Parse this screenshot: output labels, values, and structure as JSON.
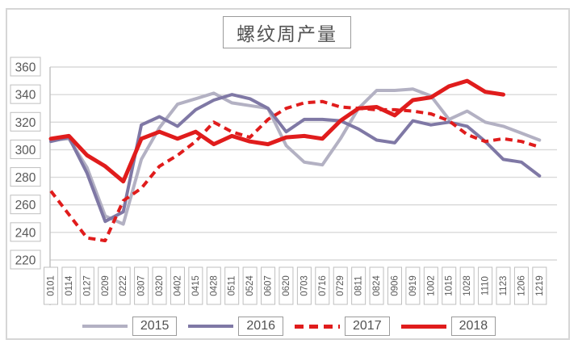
{
  "title": "螺纹周产量",
  "colors": {
    "grid": "#d9d9d9",
    "axis_box_border": "#bfbfbf",
    "axis_text": "#595959",
    "series_2015": "#b3b1c3",
    "series_2016": "#7f78a5",
    "series_2017": "#e01c1c",
    "series_2018": "#e01c1c"
  },
  "chart_data": {
    "type": "line",
    "title": "螺纹周产量",
    "xlabel": "",
    "ylabel": "",
    "ylim": [
      220,
      360
    ],
    "yticks": [
      360,
      340,
      320,
      300,
      280,
      260,
      240,
      220
    ],
    "grid": true,
    "legend_position": "bottom",
    "categories": [
      "0101",
      "0114",
      "0127",
      "0209",
      "0222",
      "0307",
      "0320",
      "0402",
      "0415",
      "0428",
      "0511",
      "0524",
      "0607",
      "0620",
      "0703",
      "0716",
      "0729",
      "0811",
      "0824",
      "0906",
      "0919",
      "1002",
      "1015",
      "1028",
      "1110",
      "1123",
      "1206",
      "1219"
    ],
    "series": [
      {
        "name": "2015",
        "color": "#b3b1c3",
        "style": "solid",
        "width": 4,
        "values": [
          307,
          308,
          287,
          252,
          246,
          293,
          316,
          333,
          337,
          341,
          334,
          332,
          330,
          303,
          291,
          289,
          308,
          330,
          343,
          343,
          344,
          339,
          322,
          328,
          320,
          317,
          312,
          307
        ]
      },
      {
        "name": "2016",
        "color": "#7f78a5",
        "style": "solid",
        "width": 4,
        "values": [
          306,
          309,
          283,
          248,
          255,
          318,
          324,
          317,
          329,
          336,
          340,
          337,
          330,
          313,
          322,
          322,
          321,
          315,
          307,
          305,
          321,
          318,
          320,
          317,
          306,
          293,
          291,
          281
        ]
      },
      {
        "name": "2017",
        "color": "#e01c1c",
        "style": "dashed",
        "width": 4,
        "values": [
          270,
          253,
          236,
          234,
          263,
          272,
          288,
          296,
          306,
          320,
          313,
          309,
          322,
          330,
          334,
          335,
          331,
          330,
          329,
          329,
          328,
          326,
          321,
          311,
          306,
          308,
          306,
          302
        ]
      },
      {
        "name": "2018",
        "color": "#e01c1c",
        "style": "solid",
        "width": 5,
        "values": [
          308,
          310,
          296,
          288,
          277,
          308,
          313,
          308,
          313,
          304,
          310,
          306,
          304,
          309,
          310,
          308,
          321,
          330,
          331,
          325,
          336,
          338,
          346,
          350,
          342,
          340
        ]
      }
    ]
  }
}
